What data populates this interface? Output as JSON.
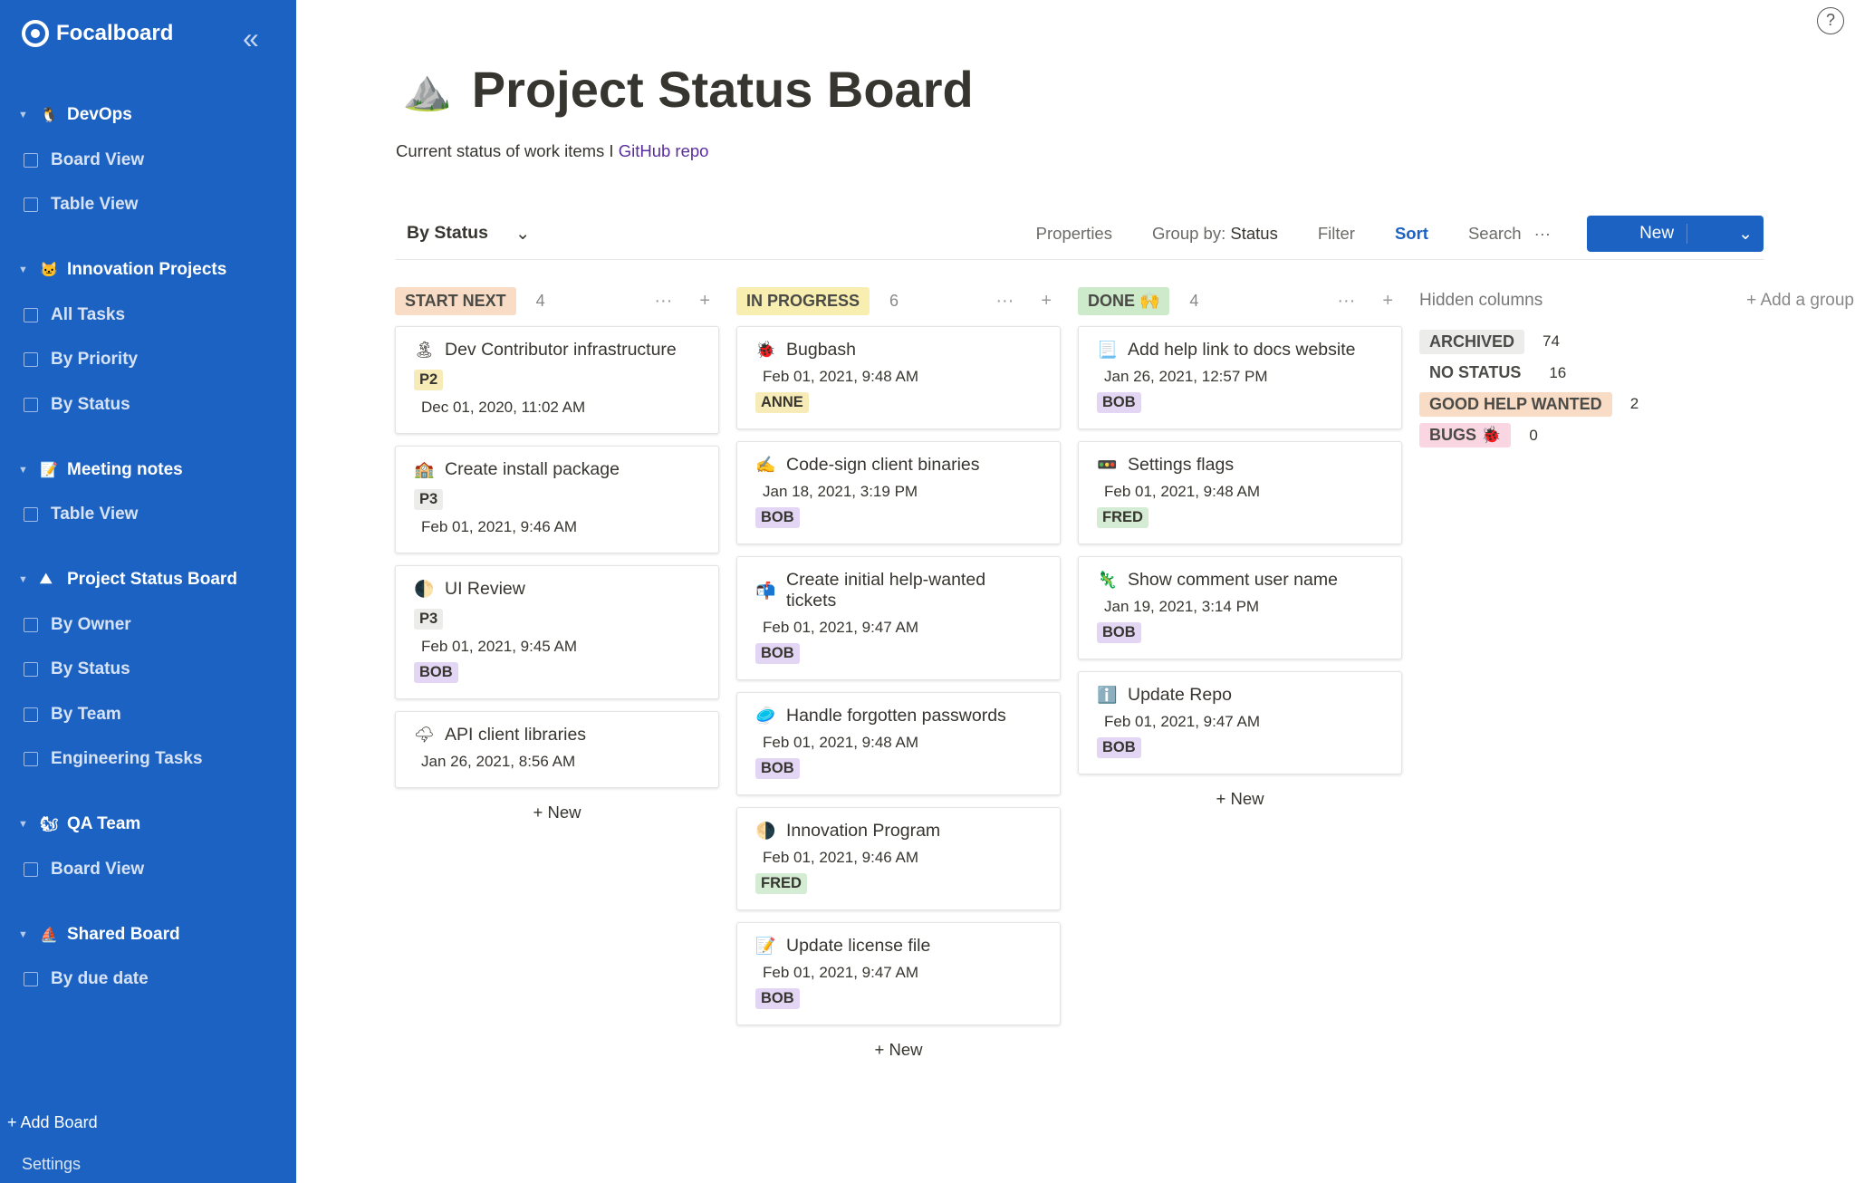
{
  "app": {
    "name": "Focalboard"
  },
  "sidebar": {
    "groups": [
      {
        "icon": "🐧",
        "label": "DevOps",
        "views": [
          {
            "label": "Board View",
            "type": "board"
          },
          {
            "label": "Table View",
            "type": "table"
          }
        ]
      },
      {
        "icon": "🐱",
        "label": "Innovation Projects",
        "views": [
          {
            "label": "All Tasks",
            "type": "table"
          },
          {
            "label": "By Priority",
            "type": "board"
          },
          {
            "label": "By Status",
            "type": "board"
          }
        ]
      },
      {
        "icon": "📝",
        "label": "Meeting notes",
        "views": [
          {
            "label": "Table View",
            "type": "table"
          }
        ]
      },
      {
        "icon": "⛰",
        "label": "Project Status Board",
        "views": [
          {
            "label": "By Owner",
            "type": "board"
          },
          {
            "label": "By Status",
            "type": "board"
          },
          {
            "label": "By Team",
            "type": "table"
          },
          {
            "label": "Engineering Tasks",
            "type": "table"
          }
        ]
      },
      {
        "icon": "🐿",
        "label": "QA Team",
        "views": [
          {
            "label": "Board View",
            "type": "board"
          }
        ]
      },
      {
        "icon": "⛵",
        "label": "Shared Board",
        "views": [
          {
            "label": "By due date",
            "type": "board"
          }
        ]
      }
    ],
    "add_board": "+ Add Board",
    "settings": "Settings"
  },
  "board": {
    "icon": "⛰️",
    "title": "Project Status Board",
    "description": "Current status of work items I ",
    "link": "GitHub repo",
    "view": "By Status",
    "toolbar": {
      "properties": "Properties",
      "group_by": "Group by: ",
      "group_by_value": "Status",
      "filter": "Filter",
      "sort": "Sort",
      "search": "Search",
      "more": "···",
      "new": "New"
    }
  },
  "columns": [
    {
      "label": "START NEXT",
      "color": "#f8dcc6",
      "count": "4",
      "cards": [
        {
          "icon": "🏝",
          "title": "Dev Contributor infrastructure",
          "tag": "P2",
          "tag_color": "#f7ebb7",
          "date": "Dec 01, 2020, 11:02 AM"
        },
        {
          "icon": "🏫",
          "title": "Create install package",
          "tag": "P3",
          "tag_color": "#ececea",
          "date": "Feb 01, 2021, 9:46 AM"
        },
        {
          "icon": "🌓",
          "title": "UI Review",
          "tag": "P3",
          "tag_color": "#ececea",
          "date": "Feb 01, 2021, 9:45 AM",
          "owner": "BOB",
          "owner_color": "#e3d6f5"
        },
        {
          "icon": "🌩",
          "title": "API client libraries",
          "date": "Jan 26, 2021, 8:56 AM"
        }
      ]
    },
    {
      "label": "IN PROGRESS",
      "color": "#f8eeb0",
      "count": "6",
      "cards": [
        {
          "icon": "🐞",
          "title": "Bugbash",
          "date": "Feb 01, 2021, 9:48 AM",
          "owner": "ANNE",
          "owner_color": "#f7ebb7"
        },
        {
          "icon": "✍",
          "title": "Code-sign client binaries",
          "date": "Jan 18, 2021, 3:19 PM",
          "owner": "BOB",
          "owner_color": "#e3d6f5"
        },
        {
          "icon": "📬",
          "title": "Create initial help-wanted tickets",
          "date": "Feb 01, 2021, 9:47 AM",
          "owner": "BOB",
          "owner_color": "#e3d6f5"
        },
        {
          "icon": "🥏",
          "title": "Handle forgotten passwords",
          "date": "Feb 01, 2021, 9:48 AM",
          "owner": "BOB",
          "owner_color": "#e3d6f5"
        },
        {
          "icon": "🌗",
          "title": "Innovation Program",
          "date": "Feb 01, 2021, 9:46 AM",
          "owner": "FRED",
          "owner_color": "#d3ecd3"
        },
        {
          "icon": "📝",
          "title": "Update license file",
          "date": "Feb 01, 2021, 9:47 AM",
          "owner": "BOB",
          "owner_color": "#e3d6f5"
        }
      ]
    },
    {
      "label": "DONE 🙌",
      "color": "#cdeacb",
      "count": "4",
      "cards": [
        {
          "icon": "📃",
          "title": "Add help link to docs website",
          "date": "Jan 26, 2021, 12:57 PM",
          "owner": "BOB",
          "owner_color": "#e3d6f5"
        },
        {
          "icon": "🚥",
          "title": "Settings flags",
          "date": "Feb 01, 2021, 9:48 AM",
          "owner": "FRED",
          "owner_color": "#d3ecd3"
        },
        {
          "icon": "🦎",
          "title": "Show comment user name",
          "date": "Jan 19, 2021, 3:14 PM",
          "owner": "BOB",
          "owner_color": "#e3d6f5"
        },
        {
          "icon": "ℹ️",
          "title": "Update Repo",
          "date": "Feb 01, 2021, 9:47 AM",
          "owner": "BOB",
          "owner_color": "#e3d6f5"
        }
      ]
    }
  ],
  "add_new": "+ New",
  "hidden": {
    "label": "Hidden columns",
    "add_group": "+ Add a group",
    "groups": [
      {
        "label": "ARCHIVED",
        "color": "#ececea",
        "count": "74"
      },
      {
        "label": "NO STATUS",
        "color": "#ffffff",
        "count": "16"
      },
      {
        "label": "GOOD HELP WANTED",
        "color": "#f8dcc6",
        "count": "2"
      },
      {
        "label": "BUGS 🐞",
        "color": "#f9d6e2",
        "count": "0"
      }
    ]
  }
}
